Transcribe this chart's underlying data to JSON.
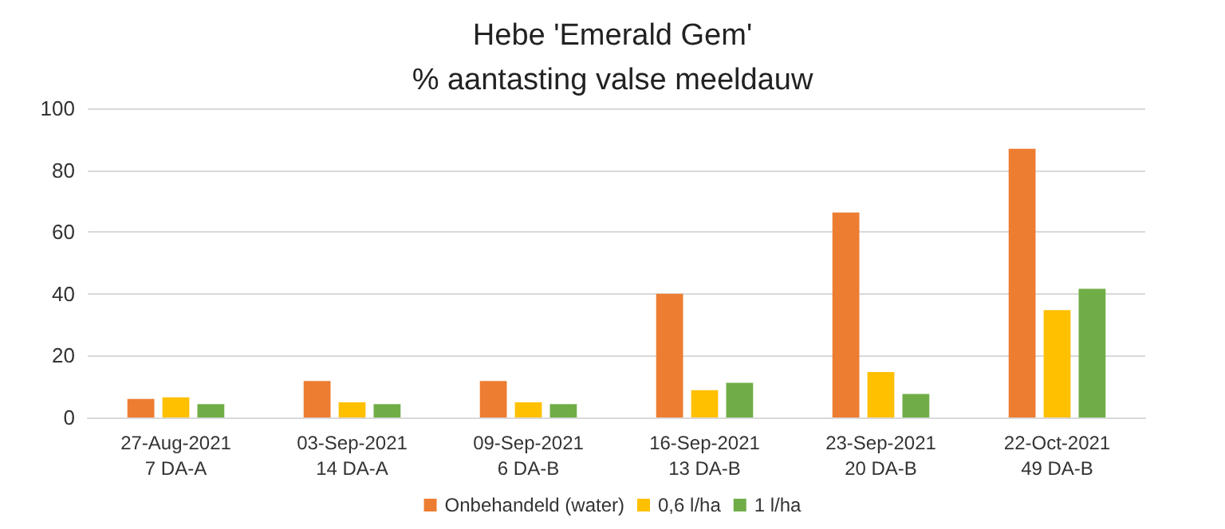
{
  "chart_data": {
    "type": "bar",
    "title": "Hebe 'Emerald Gem'",
    "subtitle": "% aantasting valse meeldauw",
    "categories": [
      "27-Aug-2021\n7 DA-A",
      "03-Sep-2021\n14 DA-A",
      "09-Sep-2021\n6 DA-B",
      "16-Sep-2021\n13 DA-B",
      "23-Sep-2021\n20 DA-B",
      "22-Oct-2021\n49 DA-B"
    ],
    "series": [
      {
        "name": "Onbehandeld (water)",
        "color": "#ed7d31",
        "values": [
          6,
          11.8,
          11.8,
          40,
          66.3,
          86.9
        ]
      },
      {
        "name": "0,6 l/ha",
        "color": "#ffc000",
        "values": [
          6.5,
          4.9,
          4.9,
          8.8,
          14.7,
          34.7
        ]
      },
      {
        "name": "1 l/ha",
        "color": "#70ad47",
        "values": [
          4.3,
          4.3,
          4.3,
          11.2,
          7.6,
          41.6
        ]
      }
    ],
    "ylim": [
      0,
      100
    ],
    "yticks": [
      0,
      20,
      40,
      60,
      80,
      100
    ],
    "grid": "y",
    "legend": "bottom"
  }
}
